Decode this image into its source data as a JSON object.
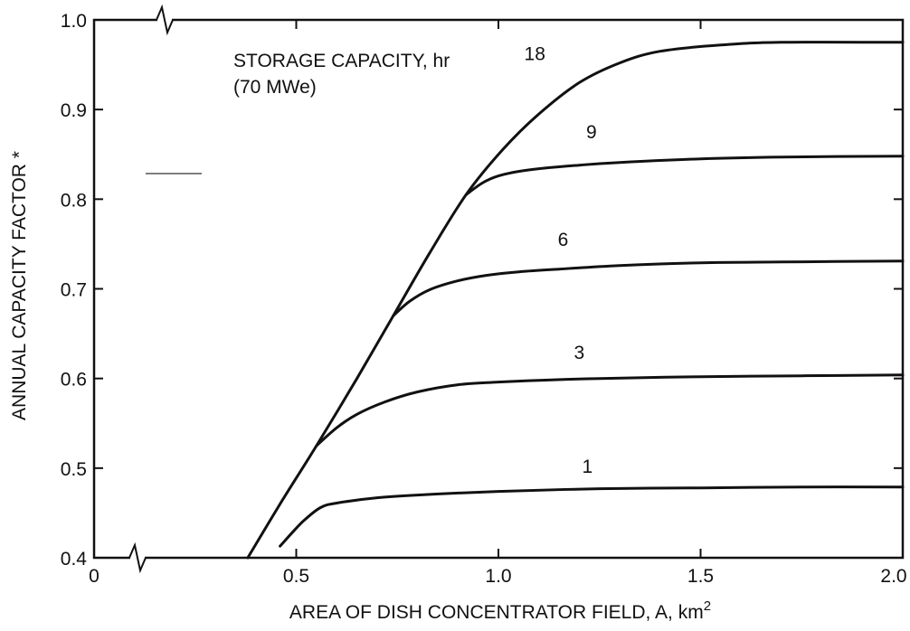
{
  "chart_data": {
    "type": "line",
    "xlabel": "AREA OF DISH CONCENTRATOR FIELD, A, km",
    "xlabel_sup": "2",
    "ylabel": "ANNUAL CAPACITY FACTOR *",
    "xlim": [
      0,
      2.0
    ],
    "ylim": [
      0.4,
      1.0
    ],
    "x_ticks": [
      {
        "value": 0,
        "label": "0"
      },
      {
        "value": 0.5,
        "label": "0.5"
      },
      {
        "value": 1.0,
        "label": "1.0"
      },
      {
        "value": 1.5,
        "label": "1.5"
      },
      {
        "value": 2.0,
        "label": "2.0"
      }
    ],
    "y_ticks": [
      {
        "value": 0.4,
        "label": "0.4"
      },
      {
        "value": 0.5,
        "label": "0.5"
      },
      {
        "value": 0.6,
        "label": "0.6"
      },
      {
        "value": 0.7,
        "label": "0.7"
      },
      {
        "value": 0.8,
        "label": "0.8"
      },
      {
        "value": 0.9,
        "label": "0.9"
      },
      {
        "value": 1.0,
        "label": "1.0"
      }
    ],
    "grid": false,
    "axis_breaks": [
      "x-near-origin",
      "y-near-origin"
    ],
    "annotation_line1": "STORAGE CAPACITY, hr",
    "annotation_line2": "(70 MWe)",
    "series": [
      {
        "name": "18",
        "x": [
          0.38,
          0.46,
          0.55,
          0.65,
          0.74,
          0.83,
          0.92,
          1.01,
          1.1,
          1.2,
          1.3,
          1.4,
          1.55,
          1.7,
          2.0
        ],
        "y": [
          0.4,
          0.46,
          0.525,
          0.6,
          0.67,
          0.74,
          0.805,
          0.855,
          0.895,
          0.93,
          0.952,
          0.965,
          0.972,
          0.975,
          0.975
        ]
      },
      {
        "name": "9",
        "x": [
          0.92,
          0.96,
          1.0,
          1.05,
          1.1,
          1.2,
          1.3,
          1.5,
          1.7,
          2.0
        ],
        "y": [
          0.805,
          0.818,
          0.826,
          0.831,
          0.834,
          0.838,
          0.841,
          0.845,
          0.847,
          0.848
        ]
      },
      {
        "name": "6",
        "x": [
          0.74,
          0.78,
          0.83,
          0.9,
          0.97,
          1.05,
          1.15,
          1.3,
          1.5,
          1.7,
          2.0
        ],
        "y": [
          0.67,
          0.686,
          0.699,
          0.709,
          0.715,
          0.719,
          0.722,
          0.726,
          0.729,
          0.73,
          0.731
        ]
      },
      {
        "name": "3",
        "x": [
          0.55,
          0.6,
          0.65,
          0.72,
          0.8,
          0.9,
          1.0,
          1.1,
          1.25,
          1.5,
          1.75,
          2.0
        ],
        "y": [
          0.525,
          0.545,
          0.56,
          0.574,
          0.585,
          0.593,
          0.596,
          0.598,
          0.6,
          0.602,
          0.603,
          0.604
        ]
      },
      {
        "name": "1",
        "x": [
          0.46,
          0.49,
          0.52,
          0.56,
          0.6,
          0.7,
          0.8,
          1.0,
          1.25,
          1.5,
          1.75,
          2.0
        ],
        "y": [
          0.413,
          0.428,
          0.442,
          0.456,
          0.461,
          0.467,
          0.47,
          0.474,
          0.477,
          0.478,
          0.479,
          0.479
        ]
      }
    ],
    "curve_labels": [
      {
        "series": "18",
        "x": 1.09,
        "y": 0.955
      },
      {
        "series": "9",
        "x": 1.23,
        "y": 0.868
      },
      {
        "series": "6",
        "x": 1.16,
        "y": 0.748
      },
      {
        "series": "3",
        "x": 1.2,
        "y": 0.622
      },
      {
        "series": "1",
        "x": 1.22,
        "y": 0.495
      }
    ]
  }
}
